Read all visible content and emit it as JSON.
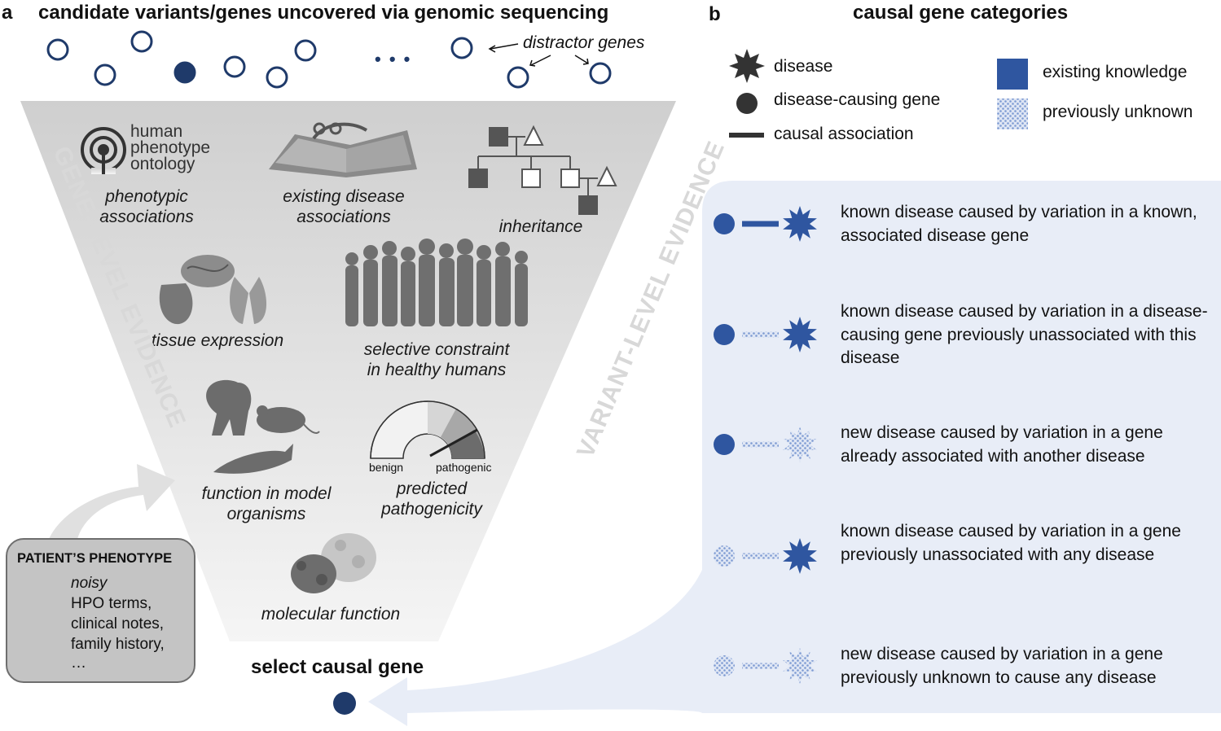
{
  "panel_a": {
    "letter": "a",
    "title": "candidate variants/genes uncovered via genomic sequencing",
    "distractor_label": "distractor genes",
    "ellipsis": "• • •",
    "side_left": "GENE-LEVEL EVIDENCE",
    "side_right": "VARIANT-LEVEL EVIDENCE",
    "hpo_logo": [
      "human",
      "phenotype",
      "ontology"
    ],
    "evidence": {
      "phenotypic": [
        "phenotypic",
        "associations"
      ],
      "existing": [
        "existing disease",
        "associations"
      ],
      "inheritance": [
        "inheritance"
      ],
      "tissue": [
        "tissue expression"
      ],
      "constraint": [
        "selective constraint",
        "in healthy humans"
      ],
      "model": [
        "function in model",
        "organisms"
      ],
      "pathogenicity": [
        "predicted",
        "pathogenicity"
      ],
      "molecular": [
        "molecular function"
      ]
    },
    "gauge": {
      "left": "benign",
      "right": "pathogenic"
    },
    "patient": {
      "title": "PATIENT’S PHENOTYPE",
      "noisy": "noisy",
      "lines": [
        "HPO terms,",
        "clinical notes,",
        "family history,",
        "…"
      ]
    },
    "select_label": "select causal gene"
  },
  "panel_b": {
    "letter": "b",
    "title": "causal gene categories",
    "legend": {
      "disease": "disease",
      "gene": "disease-causing gene",
      "association": "causal association",
      "existing": "existing knowledge",
      "unknown": "previously unknown"
    },
    "categories": [
      "known disease caused by variation in a known, associated disease gene",
      "known disease caused by variation in a disease-causing gene previously unassociated with this disease",
      "new disease caused by variation in a gene already associated with another disease",
      "known disease caused by variation in a gene previously unassociated with any disease",
      "new disease caused by variation in a gene previously unknown to cause any disease"
    ]
  },
  "colors": {
    "navy": "#1f3a6a",
    "blue": "#2f56a0",
    "light_blue": "#e8edf7",
    "pattern_blue": "#8fa8d8",
    "dark": "#333333",
    "funnel_top": "#d2d2d2",
    "funnel_bottom": "#f4f4f4"
  }
}
